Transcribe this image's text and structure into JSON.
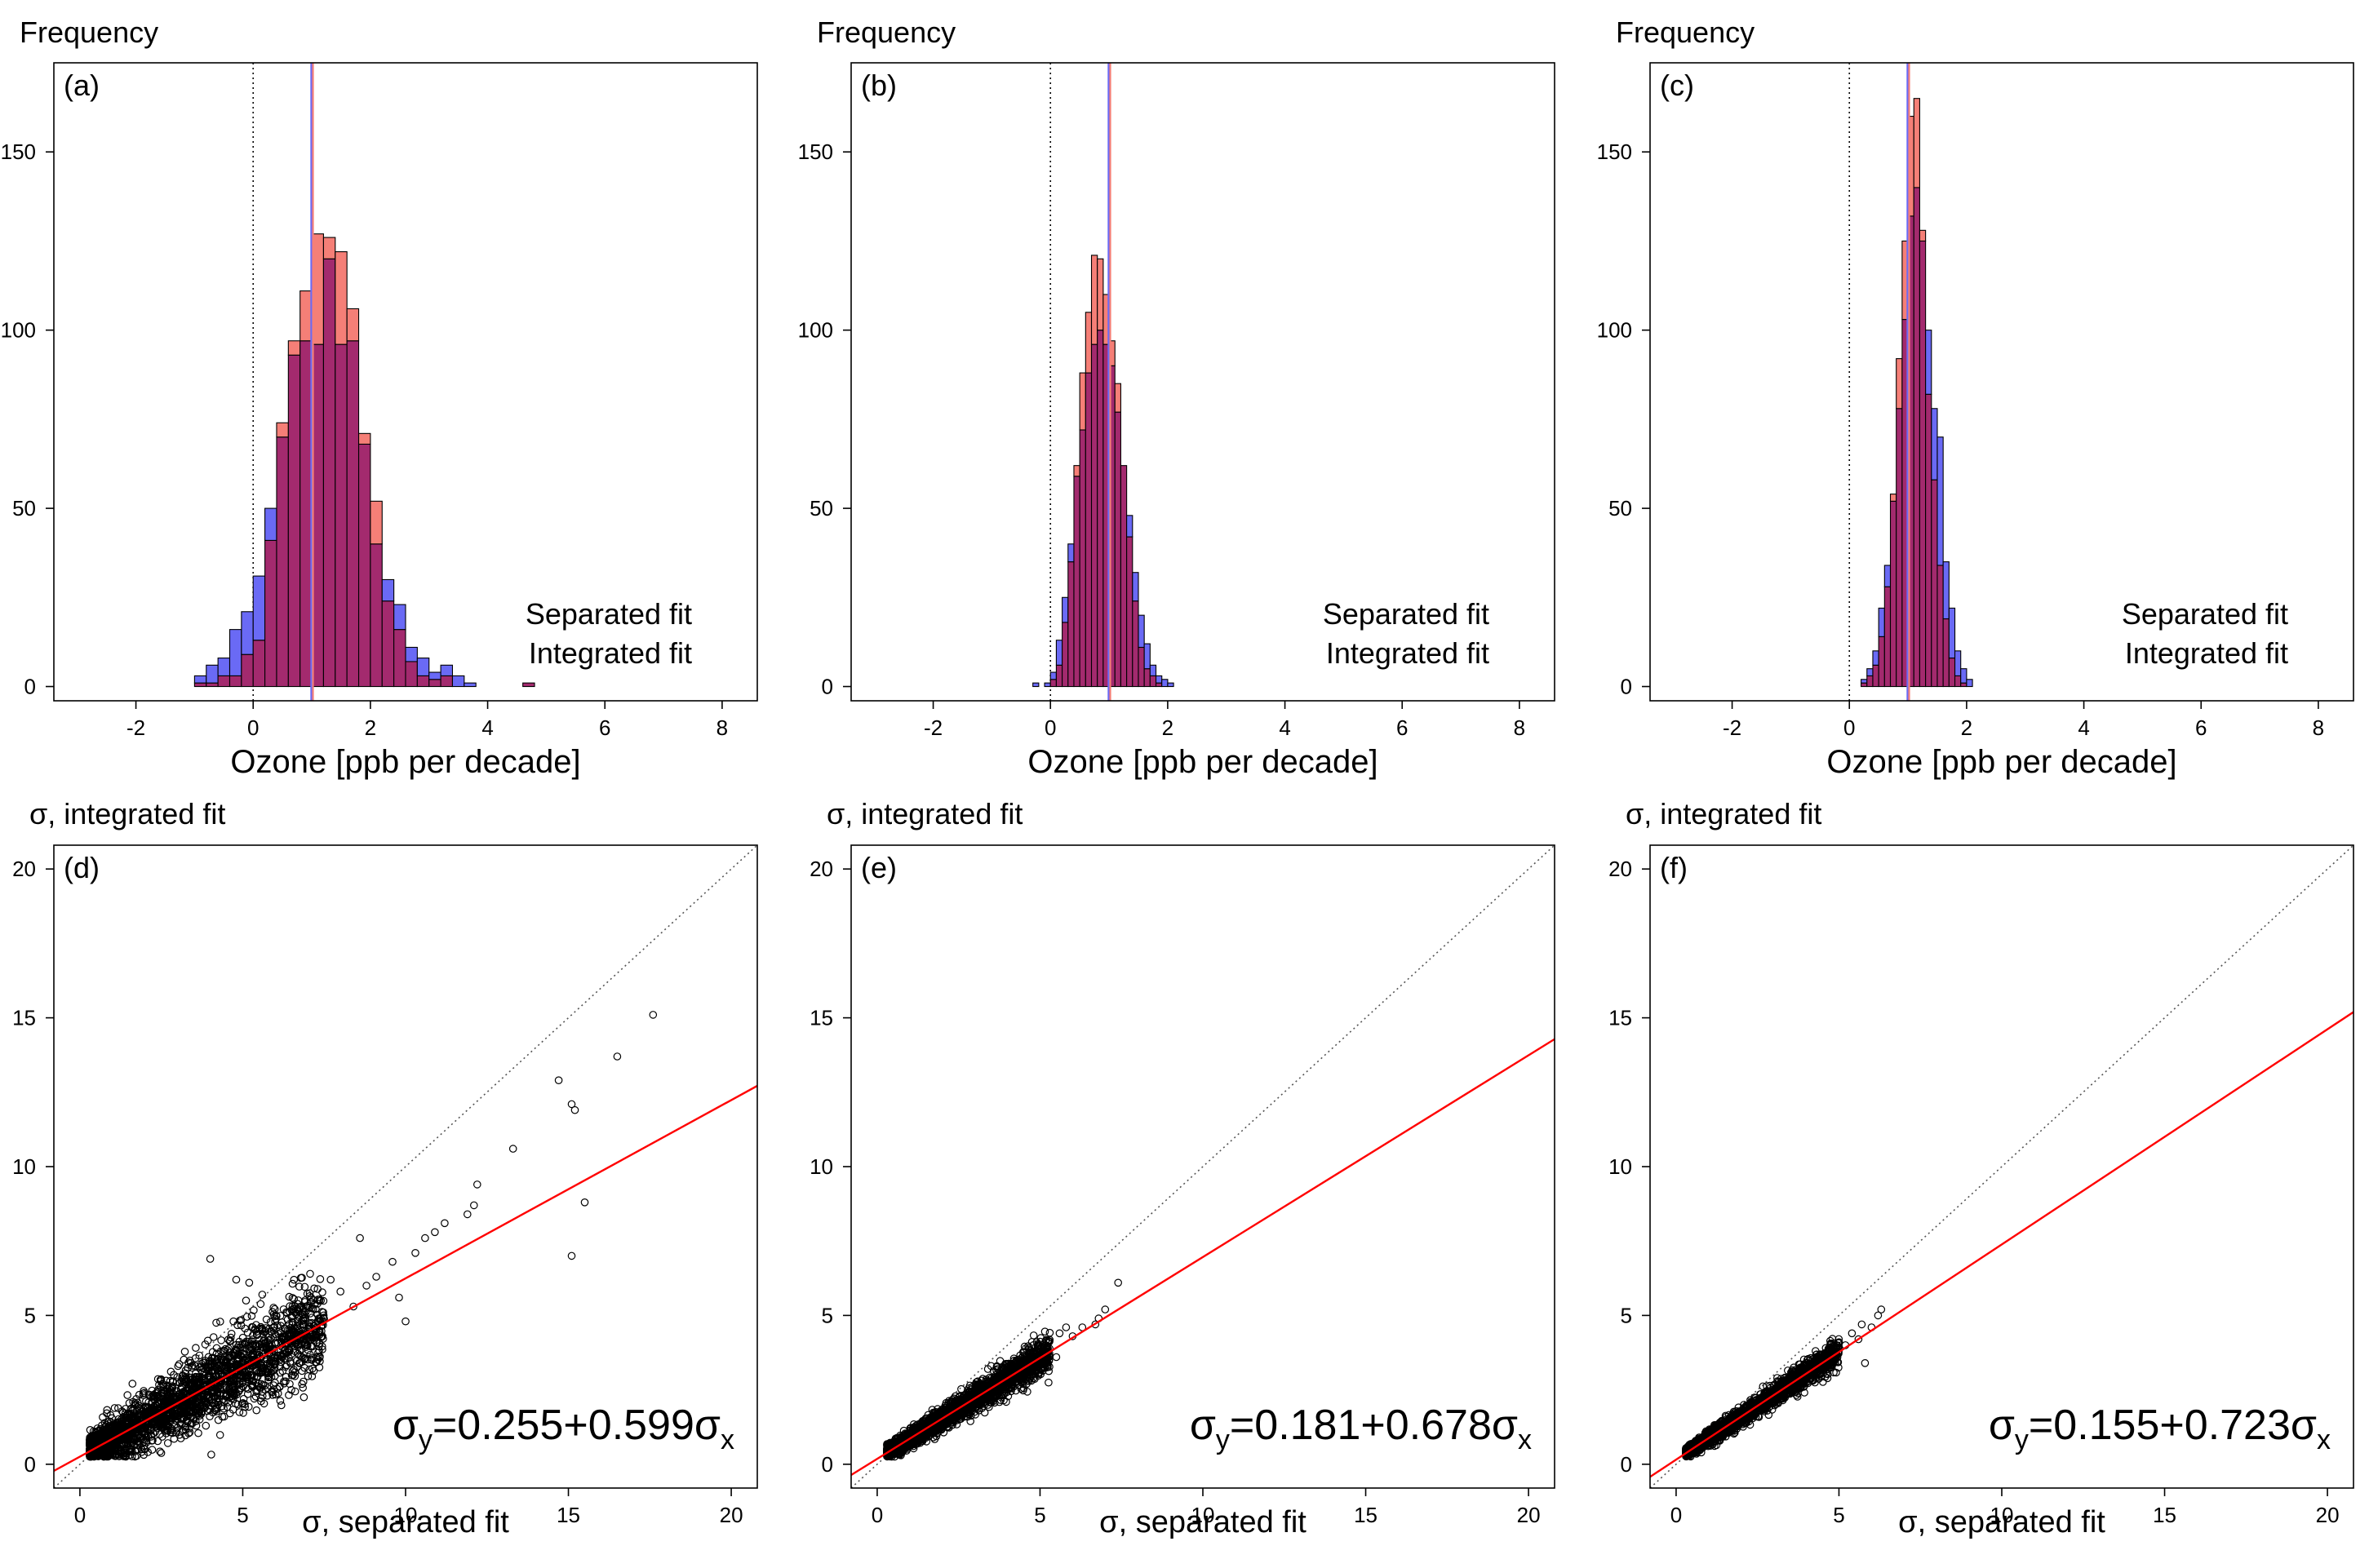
{
  "figure": {
    "colors": {
      "separated": "#6a6af5",
      "integrated": "#f57f77",
      "overlap": "#a32a6e",
      "bar_edge": "#000000",
      "regression": "#ff0000",
      "identity": "#555555",
      "point": "#000000"
    }
  },
  "chart_data": [
    {
      "panel": "(a)",
      "type": "bar",
      "ylabel": "Frequency",
      "xlabel": "Ozone [ppb per decade]",
      "xlim": [
        -3.4,
        8.6
      ],
      "ylim": [
        -4,
        175
      ],
      "xticks": [
        "-2",
        "0",
        "2",
        "4",
        "6",
        "8"
      ],
      "yticks": [
        "0",
        "50",
        "100",
        "150"
      ],
      "bin_start": -1.0,
      "bin_width": 0.2,
      "series": [
        {
          "name": "Separated fit",
          "values": [
            3,
            6,
            8,
            16,
            21,
            31,
            50,
            70,
            93,
            97,
            96,
            120,
            96,
            97,
            68,
            40,
            30,
            23,
            11,
            8,
            4,
            6,
            3,
            1,
            0,
            0,
            0,
            0,
            1
          ]
        },
        {
          "name": "Integrated fit",
          "values": [
            1,
            1,
            3,
            3,
            9,
            13,
            41,
            74,
            97,
            111,
            127,
            126,
            122,
            106,
            71,
            52,
            24,
            16,
            7,
            3,
            2,
            3,
            0,
            0,
            0,
            0,
            0,
            0,
            1
          ]
        }
      ],
      "mean_lines": {
        "separated": 1.0,
        "integrated": 1.02
      },
      "zero_line": 0
    },
    {
      "panel": "(b)",
      "type": "bar",
      "ylabel": "Frequency",
      "xlabel": "Ozone [ppb per decade]",
      "xlim": [
        -3.4,
        8.6
      ],
      "ylim": [
        -4,
        175
      ],
      "xticks": [
        "-2",
        "0",
        "2",
        "4",
        "6",
        "8"
      ],
      "yticks": [
        "0",
        "50",
        "100",
        "150"
      ],
      "bin_start": -0.3,
      "bin_width": 0.1,
      "series": [
        {
          "name": "Separated fit",
          "values": [
            1,
            0,
            1,
            4,
            13,
            25,
            40,
            59,
            72,
            88,
            96,
            100,
            96,
            90,
            77,
            62,
            48,
            32,
            20,
            12,
            6,
            3,
            2,
            1
          ]
        },
        {
          "name": "Integrated fit",
          "values": [
            0,
            0,
            0,
            2,
            6,
            18,
            35,
            62,
            88,
            105,
            121,
            120,
            110,
            97,
            85,
            62,
            42,
            24,
            11,
            5,
            3,
            1,
            0,
            0
          ]
        }
      ],
      "mean_lines": {
        "separated": 1.0,
        "integrated": 1.02
      },
      "zero_line": 0
    },
    {
      "panel": "(c)",
      "type": "bar",
      "ylabel": "Frequency",
      "xlabel": "Ozone [ppb per decade]",
      "xlim": [
        -3.4,
        8.6
      ],
      "ylim": [
        -4,
        175
      ],
      "xticks": [
        "-2",
        "0",
        "2",
        "4",
        "6",
        "8"
      ],
      "yticks": [
        "0",
        "50",
        "100",
        "150"
      ],
      "bin_start": 0.2,
      "bin_width": 0.1,
      "series": [
        {
          "name": "Separated fit",
          "values": [
            2,
            5,
            10,
            22,
            34,
            52,
            78,
            103,
            132,
            140,
            125,
            100,
            78,
            70,
            35,
            22,
            10,
            5,
            2
          ]
        },
        {
          "name": "Integrated fit",
          "values": [
            1,
            3,
            6,
            14,
            28,
            54,
            92,
            125,
            160,
            165,
            128,
            82,
            58,
            34,
            19,
            8,
            3,
            1,
            0
          ]
        }
      ],
      "mean_lines": {
        "separated": 1.0,
        "integrated": 1.02
      },
      "zero_line": 0
    },
    {
      "panel": "(d)",
      "type": "scatter",
      "ylabel": "σ, integrated fit",
      "xlabel": "σ, separated fit",
      "xlim": [
        -0.8,
        20.8
      ],
      "ylim": [
        -0.8,
        20.8
      ],
      "xticks": [
        "0",
        "5",
        "10",
        "15",
        "20"
      ],
      "yticks": [
        "0",
        "5",
        "10",
        "15",
        "20"
      ],
      "fit": {
        "intercept": 0.255,
        "slope": 0.599
      },
      "equation": {
        "lhs": "σ",
        "lhs_sub": "y",
        "rhs": "=0.255+0.599σ",
        "rhs_sub": "x"
      },
      "cloud": {
        "n": 2600,
        "xmin": 0.3,
        "xmax": 7.5,
        "xshape": 1.6,
        "spread": 0.3
      },
      "outliers": [
        [
          17.6,
          15.1
        ],
        [
          16.5,
          13.7
        ],
        [
          14.7,
          12.9
        ],
        [
          15.1,
          12.1
        ],
        [
          15.2,
          11.9
        ],
        [
          13.3,
          10.6
        ],
        [
          15.5,
          8.8
        ],
        [
          15.1,
          7.0
        ],
        [
          12.2,
          9.4
        ],
        [
          12.1,
          8.7
        ],
        [
          11.9,
          8.4
        ],
        [
          11.2,
          8.1
        ],
        [
          10.9,
          7.8
        ],
        [
          10.6,
          7.6
        ],
        [
          10.3,
          7.1
        ],
        [
          9.6,
          6.8
        ],
        [
          9.1,
          6.3
        ],
        [
          8.6,
          7.6
        ],
        [
          8.8,
          6.0
        ],
        [
          8.4,
          5.3
        ],
        [
          10.0,
          4.8
        ],
        [
          9.8,
          5.6
        ],
        [
          8.0,
          5.8
        ],
        [
          7.7,
          6.2
        ],
        [
          7.4,
          4.9
        ],
        [
          7.1,
          5.6
        ],
        [
          6.8,
          5.3
        ],
        [
          6.6,
          4.3
        ],
        [
          4.0,
          6.9
        ],
        [
          4.8,
          6.2
        ],
        [
          5.2,
          6.1
        ],
        [
          5.6,
          5.7
        ],
        [
          5.1,
          5.5
        ]
      ]
    },
    {
      "panel": "(e)",
      "type": "scatter",
      "ylabel": "σ, integrated fit",
      "xlabel": "σ, separated fit",
      "xlim": [
        -0.8,
        20.8
      ],
      "ylim": [
        -0.8,
        20.8
      ],
      "xticks": [
        "0",
        "5",
        "10",
        "15",
        "20"
      ],
      "yticks": [
        "0",
        "5",
        "10",
        "15",
        "20"
      ],
      "fit": {
        "intercept": 0.181,
        "slope": 0.678
      },
      "equation": {
        "lhs": "σ",
        "lhs_sub": "y",
        "rhs": "=0.181+0.678σ",
        "rhs_sub": "x"
      },
      "cloud": {
        "n": 2600,
        "xmin": 0.3,
        "xmax": 5.3,
        "xshape": 1.5,
        "spread": 0.12
      },
      "outliers": [
        [
          7.4,
          6.1
        ],
        [
          7.0,
          5.2
        ],
        [
          6.8,
          4.9
        ],
        [
          6.7,
          4.7
        ],
        [
          6.3,
          4.6
        ],
        [
          6.0,
          4.3
        ],
        [
          5.8,
          4.6
        ],
        [
          5.6,
          4.4
        ],
        [
          5.5,
          3.6
        ],
        [
          3.5,
          3.3
        ],
        [
          3.4,
          3.2
        ]
      ]
    },
    {
      "panel": "(f)",
      "type": "scatter",
      "ylabel": "σ, integrated fit",
      "xlabel": "σ, separated fit",
      "xlim": [
        -0.8,
        20.8
      ],
      "ylim": [
        -0.8,
        20.8
      ],
      "xticks": [
        "0",
        "5",
        "10",
        "15",
        "20"
      ],
      "yticks": [
        "0",
        "5",
        "10",
        "15",
        "20"
      ],
      "fit": {
        "intercept": 0.155,
        "slope": 0.723
      },
      "equation": {
        "lhs": "σ",
        "lhs_sub": "y",
        "rhs": "=0.155+0.723σ",
        "rhs_sub": "x"
      },
      "cloud": {
        "n": 2400,
        "xmin": 0.3,
        "xmax": 5.0,
        "xshape": 1.5,
        "spread": 0.1
      },
      "outliers": [
        [
          6.3,
          5.2
        ],
        [
          6.2,
          5.0
        ],
        [
          6.0,
          4.6
        ],
        [
          5.7,
          4.7
        ],
        [
          5.6,
          4.2
        ],
        [
          5.4,
          4.4
        ],
        [
          5.2,
          4.0
        ],
        [
          5.0,
          4.1
        ],
        [
          5.8,
          3.4
        ]
      ]
    }
  ]
}
